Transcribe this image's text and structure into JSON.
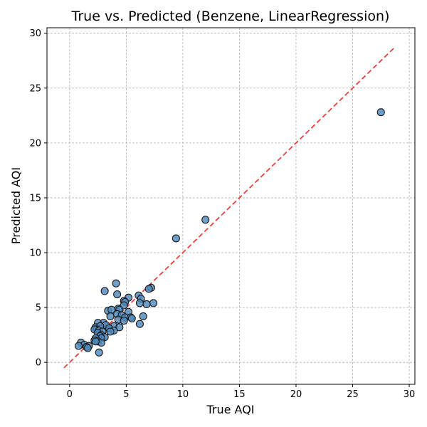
{
  "chart_data": {
    "type": "scatter",
    "title": "True vs. Predicted (Benzene, LinearRegression)",
    "xlabel": "True AQI",
    "ylabel": "Predicted AQI",
    "xlim": [
      -2,
      30.5
    ],
    "ylim": [
      -2,
      30.5
    ],
    "xticks": [
      "0",
      "5",
      "10",
      "15",
      "20",
      "25",
      "30"
    ],
    "yticks": [
      "0",
      "5",
      "10",
      "15",
      "20",
      "25",
      "30"
    ],
    "grid": true,
    "reference_line": {
      "from": [
        -0.5,
        -0.5
      ],
      "to": [
        28.7,
        28.7
      ],
      "color": "#e8413e",
      "style": "dashed"
    },
    "point_color": "#4f89bd",
    "series": [
      {
        "points": [
          [
            27.5,
            22.8
          ],
          [
            12.0,
            13.0
          ],
          [
            9.4,
            11.3
          ],
          [
            4.1,
            7.2
          ],
          [
            3.1,
            6.5
          ],
          [
            4.2,
            6.2
          ],
          [
            7.2,
            6.8
          ],
          [
            7.0,
            6.7
          ],
          [
            6.1,
            6.1
          ],
          [
            5.2,
            5.9
          ],
          [
            6.3,
            5.8
          ],
          [
            4.8,
            5.6
          ],
          [
            4.9,
            5.5
          ],
          [
            6.2,
            5.4
          ],
          [
            7.4,
            5.4
          ],
          [
            6.8,
            5.3
          ],
          [
            4.8,
            5.2
          ],
          [
            3.4,
            4.7
          ],
          [
            3.7,
            4.8
          ],
          [
            4.3,
            4.9
          ],
          [
            4.4,
            4.8
          ],
          [
            5.2,
            4.6
          ],
          [
            4.2,
            4.4
          ],
          [
            4.6,
            4.3
          ],
          [
            3.6,
            4.2
          ],
          [
            4.9,
            4.1
          ],
          [
            5.4,
            4.1
          ],
          [
            6.5,
            4.2
          ],
          [
            5.5,
            4.0
          ],
          [
            4.3,
            3.9
          ],
          [
            4.8,
            3.8
          ],
          [
            6.2,
            3.5
          ],
          [
            3.0,
            3.6
          ],
          [
            2.5,
            3.6
          ],
          [
            3.2,
            3.4
          ],
          [
            3.9,
            3.3
          ],
          [
            4.4,
            3.2
          ],
          [
            2.3,
            3.2
          ],
          [
            2.7,
            3.3
          ],
          [
            3.5,
            3.1
          ],
          [
            2.4,
            3.0
          ],
          [
            2.2,
            3.0
          ],
          [
            3.9,
            2.9
          ],
          [
            3.6,
            2.8
          ],
          [
            2.6,
            2.9
          ],
          [
            2.9,
            2.8
          ],
          [
            2.5,
            2.7
          ],
          [
            2.8,
            2.5
          ],
          [
            2.7,
            2.4
          ],
          [
            3.1,
            2.3
          ],
          [
            2.8,
            2.2
          ],
          [
            2.3,
            2.2
          ],
          [
            2.2,
            2.0
          ],
          [
            2.5,
            1.9
          ],
          [
            2.8,
            1.8
          ],
          [
            2.3,
            1.9
          ],
          [
            1.0,
            1.8
          ],
          [
            1.3,
            1.6
          ],
          [
            1.7,
            1.5
          ],
          [
            1.5,
            1.4
          ],
          [
            0.8,
            1.5
          ],
          [
            1.6,
            1.3
          ],
          [
            2.6,
            0.9
          ]
        ]
      }
    ]
  }
}
